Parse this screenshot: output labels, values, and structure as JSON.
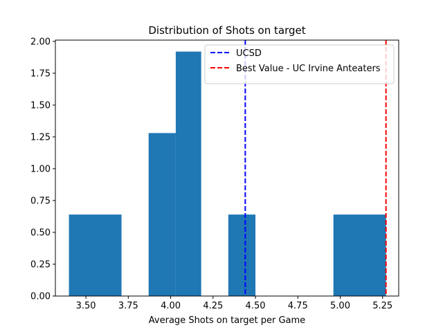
{
  "chart_data": {
    "type": "bar",
    "title": "Distribution of Shots on target",
    "xlabel": "Average Shots on target per Game",
    "ylabel": "",
    "xlim": [
      3.32,
      5.345
    ],
    "ylim": [
      0,
      2.01
    ],
    "xticks": [
      3.5,
      3.75,
      4.0,
      4.25,
      4.5,
      4.75,
      5.0,
      5.25
    ],
    "xtick_labels": [
      "3.50",
      "3.75",
      "4.00",
      "4.25",
      "4.50",
      "4.75",
      "5.00",
      "5.25"
    ],
    "yticks": [
      0,
      0.25,
      0.5,
      0.75,
      1.0,
      1.25,
      1.5,
      1.75,
      2.0
    ],
    "ytick_labels": [
      "0.00",
      "0.25",
      "0.50",
      "0.75",
      "1.00",
      "1.25",
      "1.50",
      "1.75",
      "2.00"
    ],
    "bins": [
      {
        "start": 3.4,
        "end": 3.71,
        "value": 0.64
      },
      {
        "start": 3.87,
        "end": 4.03,
        "value": 1.28
      },
      {
        "start": 4.03,
        "end": 4.18,
        "value": 1.92
      },
      {
        "start": 4.34,
        "end": 4.5,
        "value": 0.64
      },
      {
        "start": 4.96,
        "end": 5.27,
        "value": 0.64
      }
    ],
    "bar_color": "#1f77b4",
    "reference_lines": [
      {
        "name": "UCSD",
        "x": 4.44,
        "color": "#0000ff"
      },
      {
        "name": "Best Value - UC Irvine Anteaters",
        "x": 5.27,
        "color": "#ff0000"
      }
    ],
    "legend_position": "top-right",
    "grid": false
  }
}
